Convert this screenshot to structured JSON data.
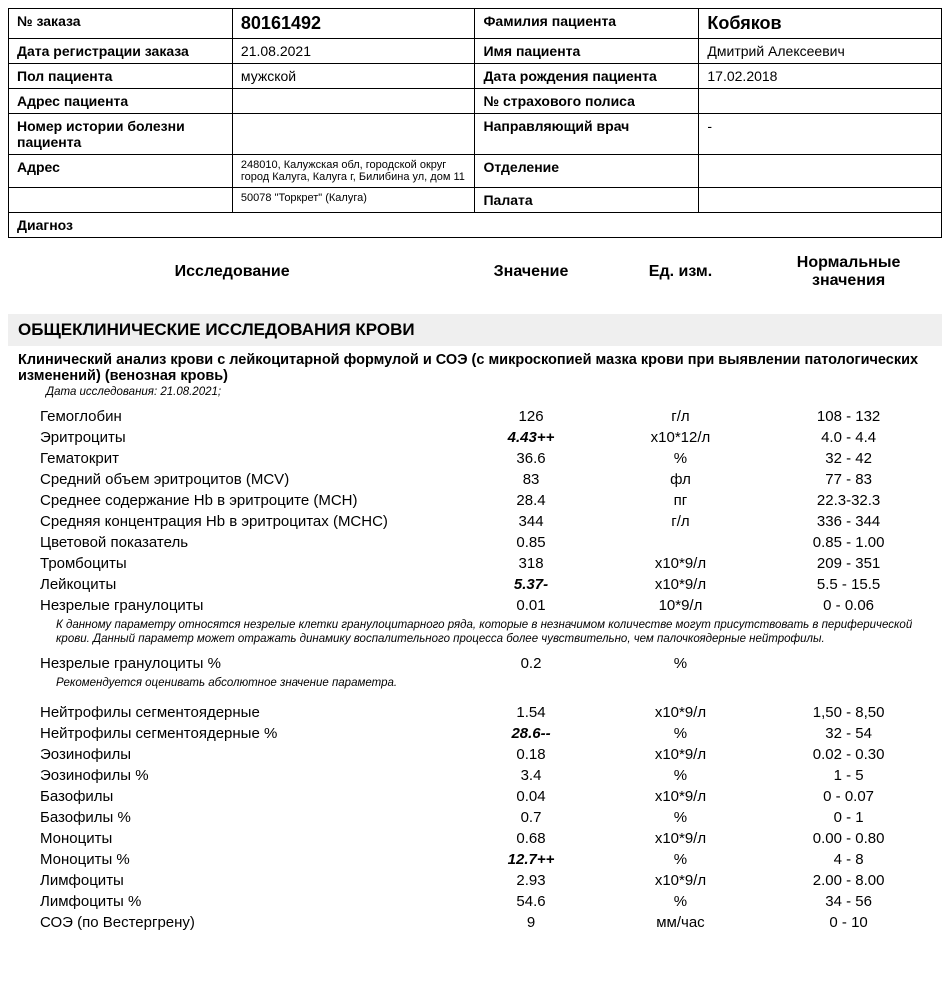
{
  "header": {
    "rows": [
      {
        "l1": "№ заказа",
        "v1": "80161492",
        "v1bold": true,
        "l2": "Фамилия пациента",
        "v2": "Кобяков",
        "v2bold": true
      },
      {
        "l1": "Дата регистрации заказа",
        "v1": "21.08.2021",
        "l2": "Имя пациента",
        "v2": "Дмитрий Алексеевич"
      },
      {
        "l1": "Пол пациента",
        "v1": "мужской",
        "l2": "Дата рождения пациента",
        "v2": "17.02.2018"
      },
      {
        "l1": "Адрес пациента",
        "v1": "",
        "l2": "№ страхового полиса",
        "v2": ""
      },
      {
        "l1": "Номер истории болезни пациента",
        "v1": "",
        "l2": "Направляющий врач",
        "v2": "-"
      },
      {
        "l1": "Адрес",
        "v1": "248010, Калужская обл, городской округ город Калуга, Калуга г, Билибина ул, дом 11",
        "v1small": true,
        "l2": "Отделение",
        "v2": ""
      },
      {
        "l1": "",
        "v1": "50078 \"Торкрет\" (Калуга)",
        "v1small": true,
        "l2": "Палата",
        "v2": ""
      }
    ],
    "diag_label": "Диагноз"
  },
  "columns": {
    "c1": "Исследование",
    "c2": "Значение",
    "c3": "Ед. изм.",
    "c4": "Нормальные значения"
  },
  "section_title": "ОБЩЕКЛИНИЧЕСКИЕ ИССЛЕДОВАНИЯ КРОВИ",
  "sub_title": "Клинический анализ крови с лейкоцитарной формулой и СОЭ (с микроскопией мазка крови при выявлении патологических изменений) (венозная кровь)",
  "test_date": "Дата исследования: 21.08.2021;",
  "rows1": [
    {
      "name": "Гемоглобин",
      "val": "126",
      "unit": "г/л",
      "ref": "108 - 132"
    },
    {
      "name": "Эритроциты",
      "val": "4.43++",
      "unit": "х10*12/л",
      "ref": "4.0 - 4.4",
      "ab": true
    },
    {
      "name": "Гематокрит",
      "val": "36.6",
      "unit": "%",
      "ref": "32 - 42"
    },
    {
      "name": "Средний объем эритроцитов (MCV)",
      "val": "83",
      "unit": "фл",
      "ref": "77 - 83"
    },
    {
      "name": "Среднее содержание Hb в эритроците (MCH)",
      "val": "28.4",
      "unit": "пг",
      "ref": "22.3-32.3"
    },
    {
      "name": "Средняя концентрация Hb в эритроцитах (MCHC)",
      "val": "344",
      "unit": "г/л",
      "ref": "336 - 344"
    },
    {
      "name": "Цветовой показатель",
      "val": "0.85",
      "unit": "",
      "ref": "0.85 - 1.00"
    },
    {
      "name": "Тромбоциты",
      "val": "318",
      "unit": "х10*9/л",
      "ref": "209 - 351"
    },
    {
      "name": "Лейкоциты",
      "val": "5.37-",
      "unit": "х10*9/л",
      "ref": "5.5 - 15.5",
      "ab": true
    },
    {
      "name": " Незрелые гранулоциты",
      "val": "0.01",
      "unit": "10*9/л",
      "ref": "0 - 0.06"
    }
  ],
  "note1": "К данному параметру относятся незрелые клетки гранулоцитарного ряда, которые  в незначимом количестве могут присутствовать в периферической крови. Данный параметр может отражать динамику воспалительного процесса более чувствительно, чем палочкоядерные нейтрофилы.",
  "rows2": [
    {
      "name": " Незрелые гранулоциты %",
      "val": "0.2",
      "unit": "%",
      "ref": ""
    }
  ],
  "note2": "Рекомендуется оценивать абсолютное значение параметра.",
  "rows3": [
    {
      "name": "Нейтрофилы сегментоядерные",
      "val": "1.54",
      "unit": "х10*9/л",
      "ref": "1,50 - 8,50"
    },
    {
      "name": "Нейтрофилы сегментоядерные %",
      "val": "28.6--",
      "unit": "%",
      "ref": "32 - 54",
      "ab": true
    },
    {
      "name": "Эозинофилы",
      "val": "0.18",
      "unit": "х10*9/л",
      "ref": "0.02 - 0.30"
    },
    {
      "name": "Эозинофилы %",
      "val": "3.4",
      "unit": "%",
      "ref": "1 - 5"
    },
    {
      "name": "Базофилы",
      "val": "0.04",
      "unit": "х10*9/л",
      "ref": "0 - 0.07"
    },
    {
      "name": "Базофилы %",
      "val": "0.7",
      "unit": "%",
      "ref": "0 - 1"
    },
    {
      "name": "Моноциты",
      "val": "0.68",
      "unit": "х10*9/л",
      "ref": "0.00 - 0.80"
    },
    {
      "name": "Моноциты %",
      "val": "12.7++",
      "unit": "%",
      "ref": "4 - 8",
      "ab": true
    },
    {
      "name": "Лимфоциты",
      "val": "2.93",
      "unit": "х10*9/л",
      "ref": "2.00 - 8.00"
    },
    {
      "name": "Лимфоциты %",
      "val": "54.6",
      "unit": "%",
      "ref": "34 - 56"
    },
    {
      "name": "СОЭ (по Вестергрену)",
      "val": "9",
      "unit": "мм/час",
      "ref": "0 - 10"
    }
  ]
}
